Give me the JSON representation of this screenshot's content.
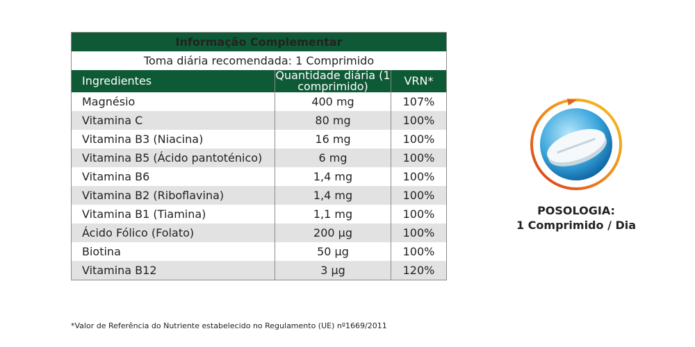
{
  "table": {
    "title": "Informação Complementar",
    "subtitle": "Toma diária recomendada: 1 Comprimido",
    "columns": [
      "Ingredientes",
      "Quantidade diária (1 comprimido)",
      "VRN*"
    ],
    "rows": [
      [
        "Magnésio",
        "400 mg",
        "107%"
      ],
      [
        "Vitamina C",
        "80 mg",
        "100%"
      ],
      [
        "Vitamina B3 (Niacina)",
        "16 mg",
        "100%"
      ],
      [
        "Vitamina B5 (Ácido pantoténico)",
        "6 mg",
        "100%"
      ],
      [
        "Vitamina B6",
        "1,4 mg",
        "100%"
      ],
      [
        "Vitamina B2 (Riboflavina)",
        "1,4 mg",
        "100%"
      ],
      [
        "Vitamina B1 (Tiamina)",
        "1,1 mg",
        "100%"
      ],
      [
        "Ácido Fólico (Folato)",
        "200 µg",
        "100%"
      ],
      [
        "Biotina",
        "50 µg",
        "100%"
      ],
      [
        "Vitamina B12",
        "3 µg",
        "120%"
      ]
    ],
    "footnote": "*Valor de Referência do Nutriente estabelecido no Regulamento (UE) nº1669/2011"
  },
  "dosage": {
    "title": "POSOLOGIA:",
    "text": "1 Comprimido / Dia"
  }
}
